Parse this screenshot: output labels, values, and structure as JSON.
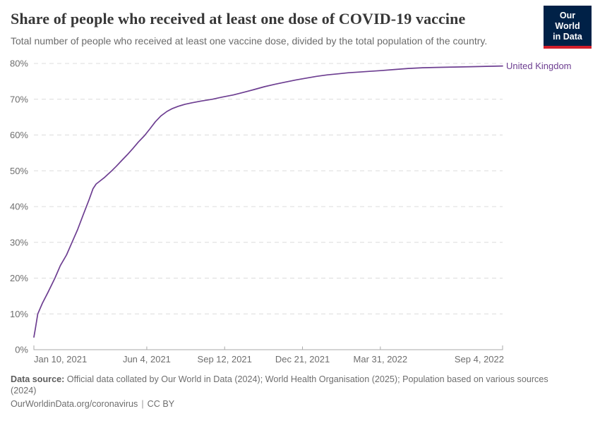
{
  "header": {
    "logo": {
      "line1": "Our World",
      "line2": "in Data",
      "bg_color": "#002147",
      "accent_color": "#d21e2b"
    }
  },
  "footer": {
    "source_label": "Data source:",
    "source_text": " Official data collated by Our World in Data (2024); World Health Organisation (2025); Population based on various sources (2024)",
    "link": "OurWorldinData.org/coronavirus",
    "separator": "|",
    "license": "CC BY"
  },
  "chart_data": {
    "type": "line",
    "title": "Share of people who received at least one dose of COVID-19 vaccine",
    "subtitle": "Total number of people who received at least one vaccine dose, divided by the total population of the country.",
    "grid": "horizontal-dashed",
    "legend_position": "end-of-line-label",
    "xlabel": "",
    "ylabel": "",
    "ylim": [
      0,
      80
    ],
    "y_tick_suffix": "%",
    "y_ticks": [
      0,
      10,
      20,
      30,
      40,
      50,
      60,
      70,
      80
    ],
    "x_start_date": "2021-01-10",
    "x_end_date": "2022-09-04",
    "x_ticks": [
      {
        "date": "2021-01-10",
        "label": "Jan 10, 2021"
      },
      {
        "date": "2021-06-04",
        "label": "Jun 4, 2021"
      },
      {
        "date": "2021-09-12",
        "label": "Sep 12, 2021"
      },
      {
        "date": "2021-12-21",
        "label": "Dec 21, 2021"
      },
      {
        "date": "2022-03-31",
        "label": "Mar 31, 2022"
      },
      {
        "date": "2022-09-04",
        "label": "Sep 4, 2022"
      }
    ],
    "colors": {
      "gridline": "#dcdcdc",
      "axis": "#a9a9a9",
      "tick_label": "#6e6e6e"
    },
    "series": [
      {
        "name": "United Kingdom",
        "color": "#6d3e91",
        "points": [
          {
            "date": "2021-01-10",
            "value": 3.5
          },
          {
            "date": "2021-01-12",
            "value": 6.0
          },
          {
            "date": "2021-01-15",
            "value": 10.0
          },
          {
            "date": "2021-01-21",
            "value": 13.0
          },
          {
            "date": "2021-01-28",
            "value": 16.0
          },
          {
            "date": "2021-02-06",
            "value": 20.0
          },
          {
            "date": "2021-02-13",
            "value": 23.5
          },
          {
            "date": "2021-02-21",
            "value": 26.5
          },
          {
            "date": "2021-02-28",
            "value": 30.0
          },
          {
            "date": "2021-03-07",
            "value": 33.5
          },
          {
            "date": "2021-03-14",
            "value": 37.5
          },
          {
            "date": "2021-03-22",
            "value": 42.0
          },
          {
            "date": "2021-03-27",
            "value": 45.0
          },
          {
            "date": "2021-03-31",
            "value": 46.3
          },
          {
            "date": "2021-04-04",
            "value": 47.0
          },
          {
            "date": "2021-04-11",
            "value": 48.2
          },
          {
            "date": "2021-04-19",
            "value": 49.8
          },
          {
            "date": "2021-04-26",
            "value": 51.3
          },
          {
            "date": "2021-05-03",
            "value": 52.9
          },
          {
            "date": "2021-05-10",
            "value": 54.5
          },
          {
            "date": "2021-05-17",
            "value": 56.2
          },
          {
            "date": "2021-05-24",
            "value": 58.0
          },
          {
            "date": "2021-06-01",
            "value": 59.8
          },
          {
            "date": "2021-06-08",
            "value": 61.7
          },
          {
            "date": "2021-06-15",
            "value": 63.7
          },
          {
            "date": "2021-06-22",
            "value": 65.3
          },
          {
            "date": "2021-06-30",
            "value": 66.6
          },
          {
            "date": "2021-07-07",
            "value": 67.4
          },
          {
            "date": "2021-07-14",
            "value": 68.0
          },
          {
            "date": "2021-07-23",
            "value": 68.6
          },
          {
            "date": "2021-08-01",
            "value": 69.0
          },
          {
            "date": "2021-08-13",
            "value": 69.5
          },
          {
            "date": "2021-08-27",
            "value": 70.0
          },
          {
            "date": "2021-09-09",
            "value": 70.6
          },
          {
            "date": "2021-09-23",
            "value": 71.2
          },
          {
            "date": "2021-10-06",
            "value": 71.9
          },
          {
            "date": "2021-10-20",
            "value": 72.7
          },
          {
            "date": "2021-11-02",
            "value": 73.5
          },
          {
            "date": "2021-11-16",
            "value": 74.2
          },
          {
            "date": "2021-11-29",
            "value": 74.8
          },
          {
            "date": "2021-12-13",
            "value": 75.4
          },
          {
            "date": "2021-12-26",
            "value": 75.9
          },
          {
            "date": "2022-01-08",
            "value": 76.4
          },
          {
            "date": "2022-01-22",
            "value": 76.8
          },
          {
            "date": "2022-02-05",
            "value": 77.1
          },
          {
            "date": "2022-02-18",
            "value": 77.4
          },
          {
            "date": "2022-03-04",
            "value": 77.6
          },
          {
            "date": "2022-03-17",
            "value": 77.8
          },
          {
            "date": "2022-03-31",
            "value": 78.0
          },
          {
            "date": "2022-04-18",
            "value": 78.3
          },
          {
            "date": "2022-05-06",
            "value": 78.6
          },
          {
            "date": "2022-05-24",
            "value": 78.8
          },
          {
            "date": "2022-06-11",
            "value": 78.9
          },
          {
            "date": "2022-07-04",
            "value": 79.0
          },
          {
            "date": "2022-07-26",
            "value": 79.1
          },
          {
            "date": "2022-08-14",
            "value": 79.2
          },
          {
            "date": "2022-09-04",
            "value": 79.3
          }
        ]
      }
    ]
  }
}
